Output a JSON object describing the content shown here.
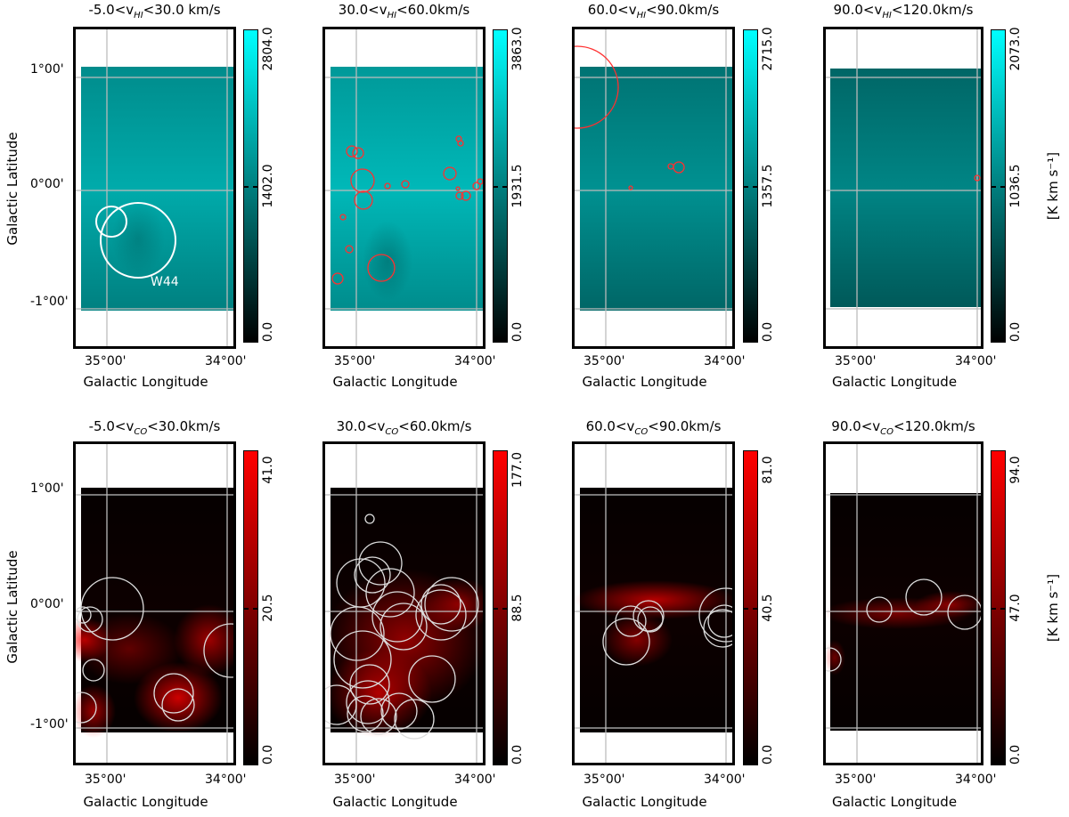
{
  "figure": {
    "axis_labels": {
      "x": "Galactic Longitude",
      "y": "Galactic Latitude"
    },
    "colorbar_unit": "[K km s⁻¹]",
    "x_ticks": [
      "35°00'",
      "34°00'"
    ],
    "y_ticks": [
      "1°00'",
      "0°00'",
      "-1°00'"
    ],
    "colors": {
      "hi_colormap": [
        "#000000",
        "#00ffff"
      ],
      "co_colormap": [
        "#000000",
        "#ff0000"
      ],
      "hi_overlay_circle": "#ff3030",
      "co_overlay_circle": "#dddddd",
      "grid": "#bbbbbb"
    },
    "hi_row": {
      "panels": [
        {
          "title_pre": "-5.0<v",
          "title_sub": "HI",
          "title_post": "<30.0 km/s",
          "cbar": {
            "max": "2804.0",
            "mid": "1402.0",
            "min": "0.0"
          },
          "annotation": "W44"
        },
        {
          "title_pre": "30.0<v",
          "title_sub": "HI",
          "title_post": "<60.0km/s",
          "cbar": {
            "max": "3863.0",
            "mid": "1931.5",
            "min": "0.0"
          }
        },
        {
          "title_pre": "60.0<v",
          "title_sub": "HI",
          "title_post": "<90.0km/s",
          "cbar": {
            "max": "2715.0",
            "mid": "1357.5",
            "min": "0.0"
          }
        },
        {
          "title_pre": "90.0<v",
          "title_sub": "HI",
          "title_post": "<120.0km/s",
          "cbar": {
            "max": "2073.0",
            "mid": "1036.5",
            "min": "0.0"
          }
        }
      ]
    },
    "co_row": {
      "panels": [
        {
          "title_pre": "-5.0<v",
          "title_sub": "CO",
          "title_post": "<30.0km/s",
          "cbar": {
            "max": "41.0",
            "mid": "20.5",
            "min": "0.0"
          }
        },
        {
          "title_pre": "30.0<v",
          "title_sub": "CO",
          "title_post": "<60.0km/s",
          "cbar": {
            "max": "177.0",
            "mid": "88.5",
            "min": "0.0"
          }
        },
        {
          "title_pre": "60.0<v",
          "title_sub": "CO",
          "title_post": "<90.0km/s",
          "cbar": {
            "max": "81.0",
            "mid": "40.5",
            "min": "0.0"
          }
        },
        {
          "title_pre": "90.0<v",
          "title_sub": "CO",
          "title_post": "<120.0km/s",
          "cbar": {
            "max": "94.0",
            "mid": "47.0",
            "min": "0.0"
          }
        }
      ]
    }
  }
}
